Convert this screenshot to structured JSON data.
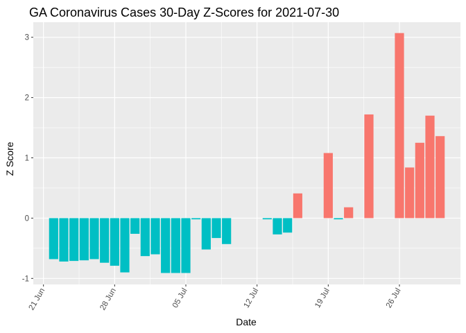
{
  "chart_data": {
    "type": "bar",
    "title": "GA Coronavirus Cases 30-Day Z-Scores for 2021-07-30",
    "xlabel": "Date",
    "ylabel": "Z Score",
    "x_tick_labels": [
      "21 Jun",
      "28 Jun",
      "05 Jul",
      "12 Jul",
      "19 Jul",
      "26 Jul"
    ],
    "x_tick_dates": [
      "2021-06-21",
      "2021-06-28",
      "2021-07-05",
      "2021-07-12",
      "2021-07-19",
      "2021-07-26"
    ],
    "y_ticks": [
      -1,
      0,
      1,
      2,
      3
    ],
    "xlim": [
      "2021-06-20",
      "2021-08-01"
    ],
    "ylim": [
      -1.1,
      3.25
    ],
    "grid": true,
    "legend": "none",
    "colors": {
      "negative": "#00BFC4",
      "positive": "#F8766D",
      "panel": "#EBEBEB",
      "gridline": "#FFFFFF"
    },
    "dates": [
      "2021-06-22",
      "2021-06-23",
      "2021-06-24",
      "2021-06-25",
      "2021-06-26",
      "2021-06-27",
      "2021-06-28",
      "2021-06-29",
      "2021-06-30",
      "2021-07-01",
      "2021-07-02",
      "2021-07-03",
      "2021-07-04",
      "2021-07-05",
      "2021-07-06",
      "2021-07-07",
      "2021-07-08",
      "2021-07-09",
      "2021-07-10",
      "2021-07-11",
      "2021-07-12",
      "2021-07-13",
      "2021-07-14",
      "2021-07-15",
      "2021-07-16",
      "2021-07-17",
      "2021-07-18",
      "2021-07-19",
      "2021-07-20",
      "2021-07-21",
      "2021-07-22",
      "2021-07-23",
      "2021-07-24",
      "2021-07-25",
      "2021-07-26",
      "2021-07-27",
      "2021-07-28",
      "2021-07-29",
      "2021-07-30"
    ],
    "values": [
      -0.68,
      -0.72,
      -0.71,
      -0.7,
      -0.68,
      -0.74,
      -0.79,
      -0.9,
      -0.26,
      -0.63,
      -0.6,
      -0.91,
      -0.91,
      -0.91,
      -0.02,
      -0.52,
      -0.33,
      -0.43,
      0,
      0,
      0,
      -0.02,
      -0.27,
      -0.24,
      0.41,
      0,
      0,
      1.08,
      -0.02,
      0.18,
      0,
      1.72,
      0,
      0,
      3.07,
      0.84,
      1.25,
      1.7,
      1.36
    ]
  }
}
